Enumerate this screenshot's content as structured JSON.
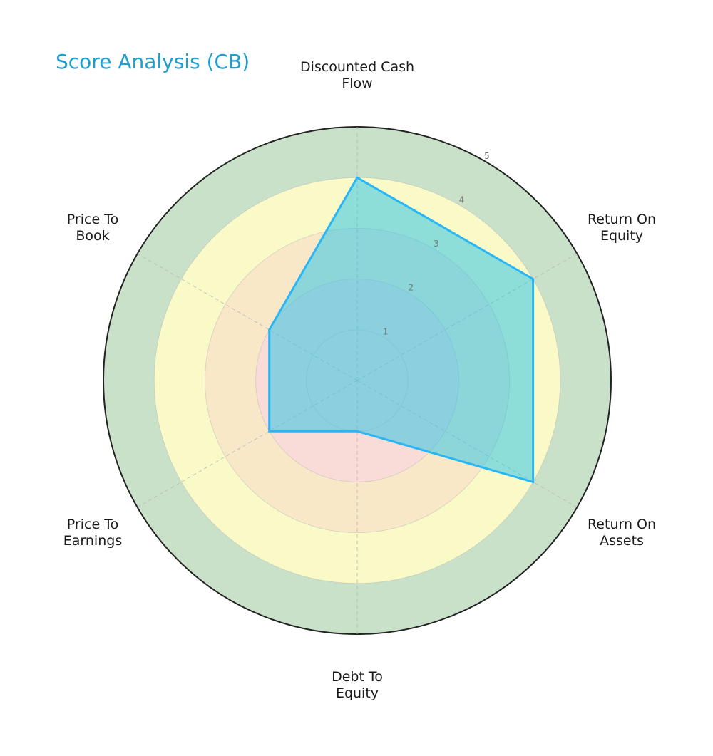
{
  "title": "Score Analysis (CB)",
  "colors": {
    "title": "#1f9fcf",
    "ring_0_2": "#f9dbd8",
    "ring_2_3": "#f8e8c8",
    "ring_3_4": "#fafac8",
    "ring_4_5": "#c9e1c9",
    "outer_border": "#222222",
    "polygon_fill": "#33c4e6",
    "polygon_fill_opacity": 0.55,
    "polygon_stroke": "#29b6f6",
    "grid": "#b9b9b9",
    "tick_label": "#777777"
  },
  "chart_data": {
    "type": "radar",
    "title": "Score Analysis (CB)",
    "categories": [
      "Discounted Cash Flow",
      "Return On Equity",
      "Return On Assets",
      "Debt To Equity",
      "Price To Earnings",
      "Price To Book"
    ],
    "category_label_lines": [
      [
        "Discounted Cash",
        "Flow"
      ],
      [
        "Return On",
        "Equity"
      ],
      [
        "Return On",
        "Assets"
      ],
      [
        "Debt To",
        "Equity"
      ],
      [
        "Price To",
        "Earnings"
      ],
      [
        "Price To",
        "Book"
      ]
    ],
    "series": [
      {
        "name": "CB",
        "values": [
          4,
          4,
          4,
          1,
          2,
          2
        ]
      }
    ],
    "rlim": [
      0,
      5
    ],
    "r_ticks": [
      1,
      2,
      3,
      4,
      5
    ],
    "background_bands": [
      {
        "from": 0,
        "to": 2,
        "color": "#f9dbd8"
      },
      {
        "from": 2,
        "to": 3,
        "color": "#f8e8c8"
      },
      {
        "from": 3,
        "to": 4,
        "color": "#fafac8"
      },
      {
        "from": 4,
        "to": 5,
        "color": "#c9e1c9"
      }
    ],
    "grid": true
  },
  "labels": {
    "dcf": [
      "Discounted Cash",
      "Flow"
    ],
    "roe": [
      "Return On",
      "Equity"
    ],
    "roa": [
      "Return On",
      "Assets"
    ],
    "de": [
      "Debt To",
      "Equity"
    ],
    "pe": [
      "Price To",
      "Earnings"
    ],
    "pb": [
      "Price To",
      "Book"
    ]
  }
}
